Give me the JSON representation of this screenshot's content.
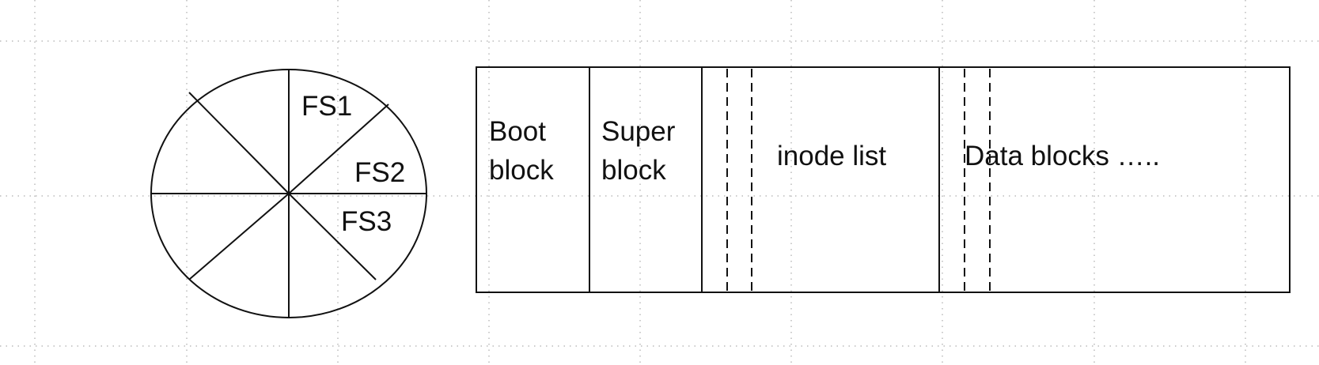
{
  "disk": {
    "segments": [
      "FS1",
      "FS2",
      "FS3"
    ]
  },
  "layout": {
    "boot": [
      "Boot",
      "block"
    ],
    "super": [
      "Super",
      "block"
    ],
    "inode": "inode list",
    "data": "Data blocks ….."
  }
}
